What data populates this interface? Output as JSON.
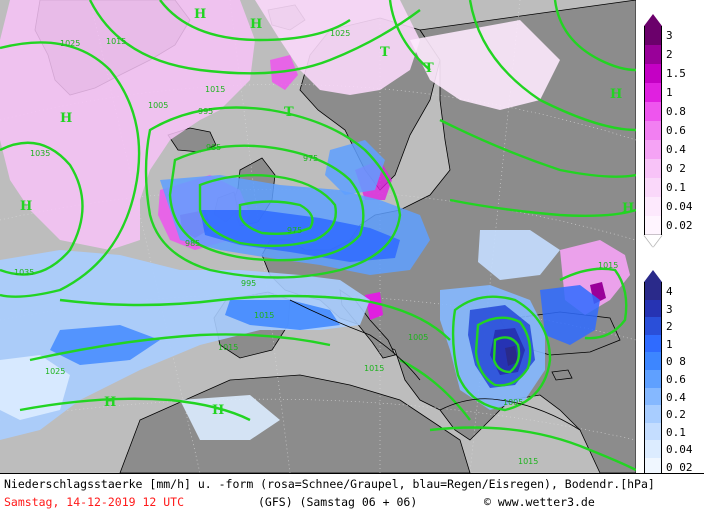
{
  "map": {
    "colors": {
      "sea": "#bdbdbd",
      "land": "#8c8c8c",
      "isobar": "#22d422",
      "coast": "#000000"
    },
    "pressure_centers": [
      {
        "letter": "H",
        "id": "h-greenland-north"
      },
      {
        "letter": "H",
        "id": "h-greenland-south"
      },
      {
        "letter": "H",
        "id": "h-siberia"
      },
      {
        "letter": "H",
        "id": "h-east-europe"
      },
      {
        "letter": "H",
        "id": "h-caspian"
      },
      {
        "letter": "H",
        "id": "h-atlantic-west"
      },
      {
        "letter": "H",
        "id": "h-azores"
      },
      {
        "letter": "H",
        "id": "h-iberia"
      },
      {
        "letter": "T",
        "id": "t-norway"
      },
      {
        "letter": "T",
        "id": "t-iceland"
      },
      {
        "letter": "T",
        "id": "t-scandinavia"
      }
    ],
    "isobar_labels": [
      "1025",
      "1005",
      "1015",
      "995",
      "985",
      "975",
      "1035",
      "1025",
      "1015",
      "1005",
      "995",
      "985",
      "975",
      "1015",
      "1035",
      "1025",
      "1015",
      "1005",
      "1015",
      "1015",
      "1015"
    ]
  },
  "legend": {
    "snow": {
      "values": [
        "3",
        "2",
        "1.5",
        "1",
        "0.8",
        "0.6",
        "0.4",
        "0 2",
        "0.1",
        "0.04",
        "0.02"
      ],
      "colors": [
        "#6b006b",
        "#990099",
        "#c400c4",
        "#e020e0",
        "#ee55ee",
        "#f27ff2",
        "#f5a3f5",
        "#f8c3f8",
        "#fad8fa",
        "#fde9fd",
        "#fff5ff"
      ]
    },
    "rain": {
      "values": [
        "4",
        "3",
        "2",
        "1",
        "0 8",
        "0.6",
        "0.4",
        "0.2",
        "0.1",
        "0.04",
        "0 02"
      ],
      "colors": [
        "#2a2a8a",
        "#2633b3",
        "#2a4fd9",
        "#2f6bff",
        "#3d86ff",
        "#5fa0ff",
        "#85b8ff",
        "#a8cdff",
        "#c4ddff",
        "#dcecff",
        "#f0f7ff"
      ]
    }
  },
  "footer": {
    "line1": "Niederschlagsstaerke [mm/h] u. -form (rosa=Schnee/Graupel, blau=Regen/Eisregen), Bodendr.[hPa]",
    "date": "Samstag, 14-12-2019  12 UTC",
    "model": "(GFS)  (Samstag 06 + 06)",
    "copyright": "© www.wetter3.de"
  }
}
